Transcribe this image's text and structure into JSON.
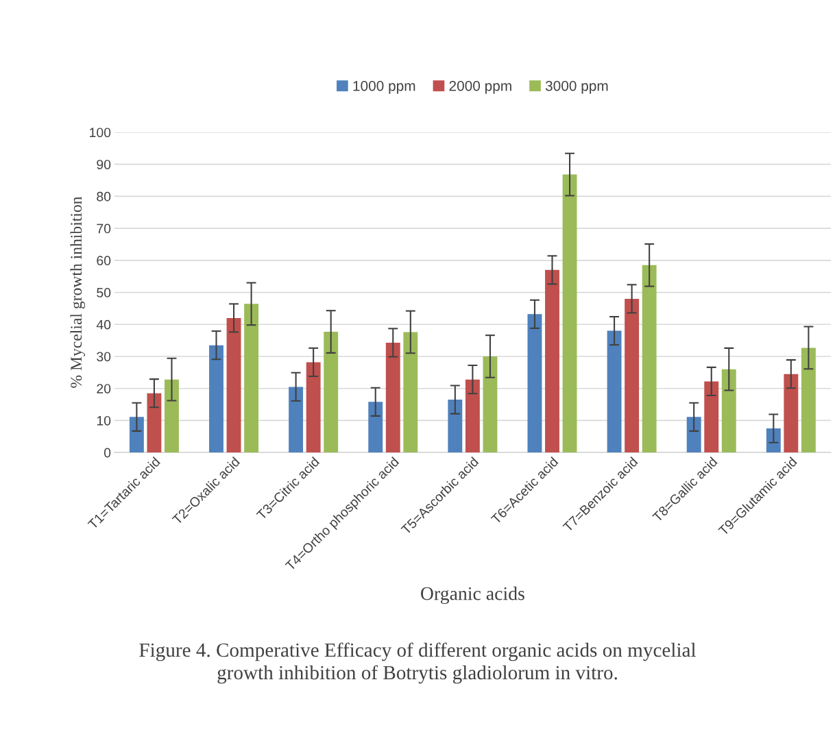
{
  "chart_data": {
    "type": "bar",
    "ylabel": "% Mycelial growth inhibition",
    "xlabel": "Organic acids",
    "categories": [
      "T1=Tartaric acid",
      "T2=Oxalic acid",
      "T3=Citric acid",
      "T4=Ortho phosphoric acid",
      "T5=Ascorbic acid",
      "T6=Acetic acid",
      "T7=Benzoic acid",
      "T8=Gallic acid",
      "T9=Glutamic acid"
    ],
    "series": [
      {
        "name": "1000 ppm",
        "color": "#4f81bd",
        "values": [
          11.1,
          33.5,
          20.5,
          15.8,
          16.5,
          43.2,
          38.0,
          11.1,
          7.5
        ],
        "errors": [
          4.4,
          4.4,
          4.4,
          4.4,
          4.4,
          4.4,
          4.4,
          4.4,
          4.4
        ]
      },
      {
        "name": "2000 ppm",
        "color": "#c0504d",
        "values": [
          18.5,
          42.0,
          28.2,
          34.3,
          22.8,
          57.0,
          48.0,
          22.2,
          24.5
        ],
        "errors": [
          4.4,
          4.4,
          4.4,
          4.4,
          4.4,
          4.4,
          4.4,
          4.4,
          4.4
        ]
      },
      {
        "name": "3000 ppm",
        "color": "#9bbb59",
        "values": [
          22.8,
          46.4,
          37.7,
          37.6,
          30.0,
          86.8,
          58.5,
          26.0,
          32.7
        ],
        "errors": [
          6.6,
          6.6,
          6.6,
          6.6,
          6.6,
          6.6,
          6.6,
          6.6,
          6.6
        ]
      }
    ],
    "ylim": [
      0,
      100
    ],
    "yticks": [
      0,
      10,
      20,
      30,
      40,
      50,
      60,
      70,
      80,
      90,
      100
    ],
    "grid": "y",
    "legend": "top",
    "annotations": [
      "Figure 4. Comperative Efficacy of different organic acids on mycelial\ngrowth inhibition of Botrytis gladiolorum in vitro."
    ]
  }
}
